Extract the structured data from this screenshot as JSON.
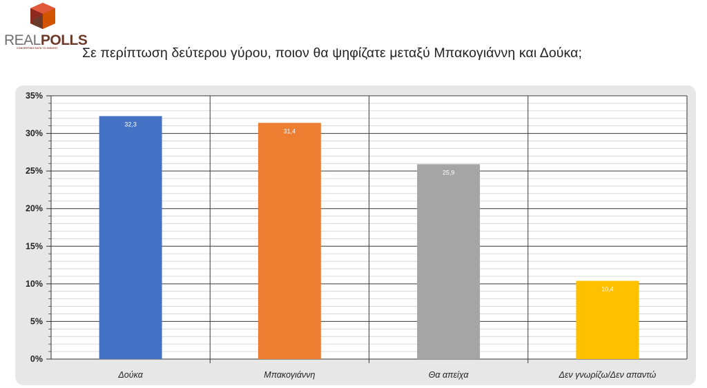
{
  "logo": {
    "text_real": "REAL",
    "text_polls": "POLLS",
    "tagline": "CONVERTING DATA TO INSIGHT",
    "colors": {
      "red": "#c0392b",
      "brown": "#6b3a2a",
      "orange": "#d35400",
      "gray": "#6d6e71"
    }
  },
  "title": "Σε περίπτωση δεύτερου γύρου, ποιον θα ψηφίζατε μεταξύ Μπακογιάννη και Δούκα;",
  "chart_data": {
    "type": "bar",
    "title": "",
    "xlabel": "",
    "ylabel": "",
    "categories": [
      "Δούκα",
      "Μπακογιάννη",
      "Θα απείχα",
      "Δεν γνωρίζω/Δεν απαντώ"
    ],
    "values": [
      32.3,
      31.4,
      25.9,
      10.4
    ],
    "data_labels": [
      "32,3",
      "31,4",
      "25,9",
      "10,4"
    ],
    "bar_colors": [
      "#4472c4",
      "#ed7d31",
      "#a5a5a5",
      "#ffc000"
    ],
    "ylim": [
      0,
      35
    ],
    "yticks": [
      0,
      5,
      10,
      15,
      20,
      25,
      30,
      35
    ],
    "ytick_labels": [
      "0%",
      "5%",
      "10%",
      "15%",
      "20%",
      "25%",
      "30%",
      "35%"
    ],
    "minor_step": 1,
    "grid": true,
    "legend": "none"
  }
}
